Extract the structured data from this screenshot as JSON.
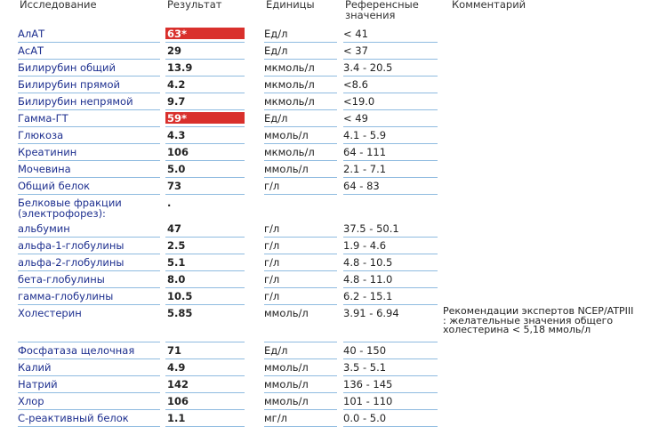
{
  "header": {
    "col1": "Исследование",
    "col2": "Результат",
    "col3": "Единицы",
    "col4_line1": "Референсные",
    "col4_line2": "значения",
    "col5": "Комментарий"
  },
  "accent_color": "#d9302c",
  "name_color": "#1d2f8f",
  "rows": [
    {
      "name": [
        "АлАТ"
      ],
      "result": "63*",
      "flag": true,
      "unit": "Ед/л",
      "ref": "< 41",
      "comment": []
    },
    {
      "name": [
        "АсАТ"
      ],
      "result": "29",
      "unit": "Ед/л",
      "ref": "< 37",
      "comment": []
    },
    {
      "name": [
        "Билирубин общий"
      ],
      "result": "13.9",
      "unit": "мкмоль/л",
      "ref": "3.4 - 20.5",
      "comment": []
    },
    {
      "name": [
        "Билирубин прямой"
      ],
      "result": "4.2",
      "unit": "мкмоль/л",
      "ref": "<8.6",
      "comment": []
    },
    {
      "name": [
        "Билирубин непрямой"
      ],
      "result": "9.7",
      "unit": "мкмоль/л",
      "ref": "<19.0",
      "comment": []
    },
    {
      "name": [
        "Гамма-ГТ"
      ],
      "result": "59*",
      "flag": true,
      "unit": "Ед/л",
      "ref": "< 49",
      "comment": []
    },
    {
      "name": [
        "Глюкоза"
      ],
      "result": "4.3",
      "unit": "ммоль/л",
      "ref": "4.1 - 5.9",
      "comment": []
    },
    {
      "name": [
        "Креатинин"
      ],
      "result": "106",
      "unit": "мкмоль/л",
      "ref": "64 - 111",
      "comment": []
    },
    {
      "name": [
        "Мочевина"
      ],
      "result": "5.0",
      "unit": "ммоль/л",
      "ref": "2.1 - 7.1",
      "comment": []
    },
    {
      "name": [
        "Общий белок"
      ],
      "result": "73",
      "unit": "г/л",
      "ref": "64 - 83",
      "comment": []
    },
    {
      "name": [
        "Белковые фракции",
        "(электрофорез):"
      ],
      "result": ".",
      "unit": "",
      "ref": "",
      "comment": [],
      "lines": 2,
      "noline": true
    },
    {
      "name": [
        "альбумин"
      ],
      "result": "47",
      "unit": "г/л",
      "ref": "37.5 - 50.1",
      "comment": []
    },
    {
      "name": [
        "альфа-1-глобулины"
      ],
      "result": "2.5",
      "unit": "г/л",
      "ref": "1.9 - 4.6",
      "comment": []
    },
    {
      "name": [
        "альфа-2-глобулины"
      ],
      "result": "5.1",
      "unit": "г/л",
      "ref": "4.8 - 10.5",
      "comment": []
    },
    {
      "name": [
        "бета-глобулины"
      ],
      "result": "8.0",
      "unit": "г/л",
      "ref": "4.8 - 11.0",
      "comment": []
    },
    {
      "name": [
        "гамма-глобулины"
      ],
      "result": "10.5",
      "unit": "г/л",
      "ref": "6.2 - 15.1",
      "comment": []
    },
    {
      "name": [
        "Холестерин"
      ],
      "result": "5.85",
      "unit": "ммоль/л",
      "ref": "3.91 - 6.94",
      "comment": [
        "Рекомендации экспертов NCEP/ATPIII",
        ": желательные значения общего",
        "холестерина < 5,18 ммоль/л"
      ],
      "lines": 3
    },
    {
      "name": [
        "Фосфатаза щелочная"
      ],
      "result": "71",
      "unit": "Ед/л",
      "ref": "40 - 150",
      "comment": []
    },
    {
      "name": [
        "Калий"
      ],
      "result": "4.9",
      "unit": "ммоль/л",
      "ref": "3.5 - 5.1",
      "comment": []
    },
    {
      "name": [
        "Натрий"
      ],
      "result": "142",
      "unit": "ммоль/л",
      "ref": "136 - 145",
      "comment": []
    },
    {
      "name": [
        "Хлор"
      ],
      "result": "106",
      "unit": "ммоль/л",
      "ref": "101 - 110",
      "comment": []
    },
    {
      "name": [
        "С-реактивный белок"
      ],
      "result": "1.1",
      "unit": "мг/л",
      "ref": "0.0 - 5.0",
      "comment": []
    }
  ]
}
